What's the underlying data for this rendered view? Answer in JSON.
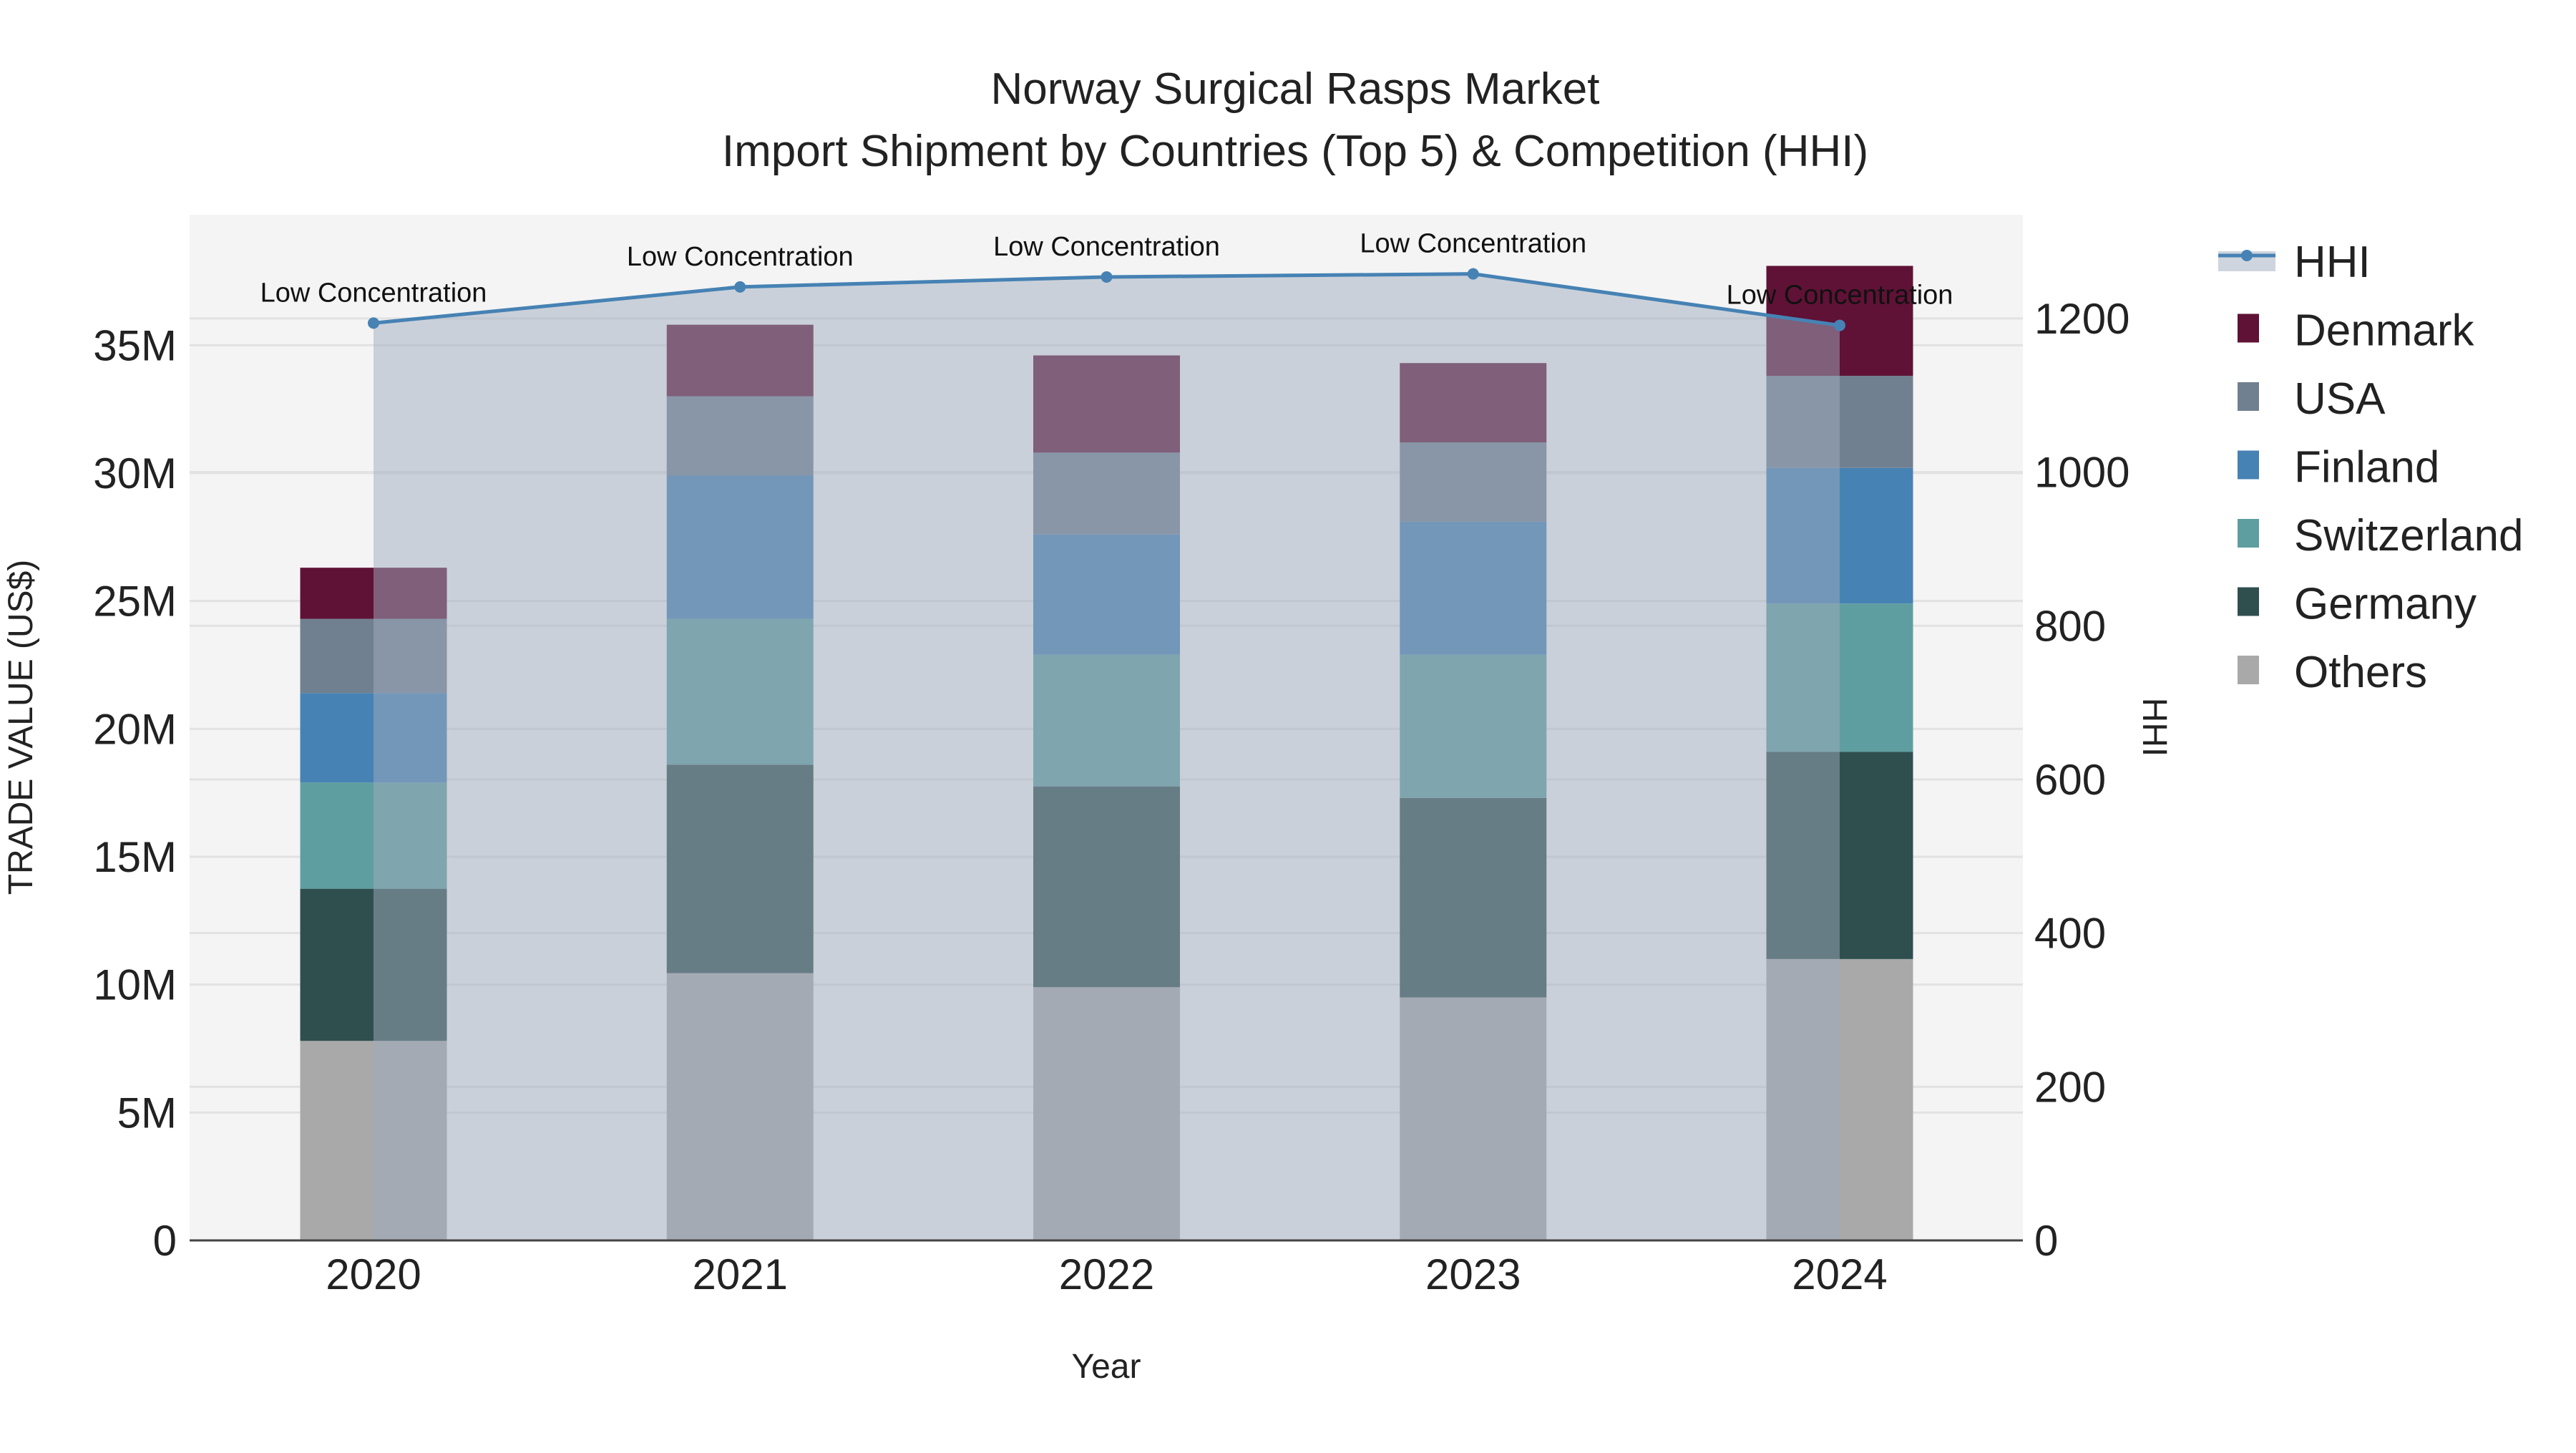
{
  "chart_data": {
    "type": "bar",
    "title": "Norway Surgical Rasps Market",
    "subtitle": "Import Shipment by Countries (Top 5) & Competition (HHI)",
    "xlabel": "Year",
    "ylabel": "TRADE VALUE (US$)",
    "y2label": "HHI",
    "categories": [
      "2020",
      "2021",
      "2022",
      "2023",
      "2024"
    ],
    "ylim": [
      0,
      40100000
    ],
    "y2lim": [
      0,
      1335
    ],
    "yticks": [
      0,
      5000000,
      10000000,
      15000000,
      20000000,
      25000000,
      30000000,
      35000000
    ],
    "ytick_labels": [
      "0",
      "5M",
      "10M",
      "15M",
      "20M",
      "25M",
      "30M",
      "35M"
    ],
    "y2ticks": [
      0,
      200,
      400,
      600,
      800,
      1000,
      1200
    ],
    "y2tick_labels": [
      "0",
      "200",
      "400",
      "600",
      "800",
      "1000",
      "1200"
    ],
    "grid": true,
    "stacked": true,
    "legend_position": "right",
    "series": [
      {
        "name": "Others",
        "color": "#a9a9a9",
        "values": [
          7800000,
          10450000,
          9900000,
          9500000,
          11000000
        ]
      },
      {
        "name": "Germany",
        "color": "#2f4f4f",
        "values": [
          5950000,
          8150000,
          7850000,
          7800000,
          8100000
        ]
      },
      {
        "name": "Switzerland",
        "color": "#5f9ea0",
        "values": [
          4150000,
          5700000,
          5150000,
          5600000,
          5800000
        ]
      },
      {
        "name": "Finland",
        "color": "#4682b4",
        "values": [
          3500000,
          5600000,
          4700000,
          5200000,
          5300000
        ]
      },
      {
        "name": "USA",
        "color": "#708090",
        "values": [
          2900000,
          3100000,
          3200000,
          3100000,
          3600000
        ]
      },
      {
        "name": "Denmark",
        "color": "#5f1236",
        "values": [
          2000000,
          2800000,
          3800000,
          3100000,
          4300000
        ]
      }
    ],
    "hhi": {
      "name": "HHI",
      "color": "#4682b4",
      "values": [
        1194,
        1241,
        1254,
        1258,
        1191
      ],
      "annotations": [
        "Low Concentration",
        "Low Concentration",
        "Low Concentration",
        "Low Concentration",
        "Low Concentration"
      ]
    },
    "legend_order": [
      "HHI",
      "Denmark",
      "USA",
      "Finland",
      "Switzerland",
      "Germany",
      "Others"
    ]
  }
}
